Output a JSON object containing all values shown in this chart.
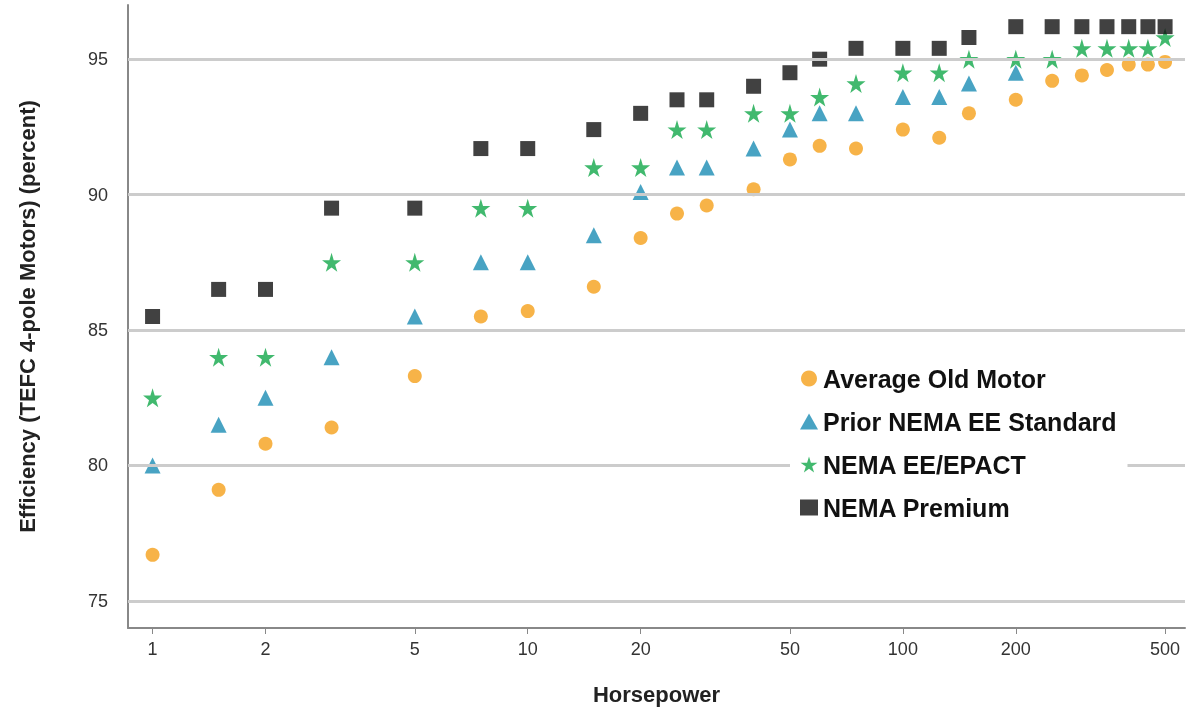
{
  "chart_data": {
    "type": "scatter",
    "xlabel": "Horsepower",
    "ylabel": "Efficiency (TEFC 4-pole Motors) (percent)",
    "log": "x",
    "xlim": [
      0.86,
      565
    ],
    "xticks": [
      1,
      2,
      5,
      10,
      20,
      50,
      100,
      200,
      500
    ],
    "ylim": [
      74,
      97
    ],
    "yticks": [
      75,
      80,
      85,
      90,
      95
    ],
    "grid": "y",
    "legend": "right",
    "series": [
      {
        "name": "Average Old Motor",
        "color": "#f5a01a",
        "marker": "circle",
        "x": [
          1,
          1.5,
          2,
          3,
          5,
          7.5,
          10,
          15,
          20,
          25,
          30,
          40,
          50,
          60,
          75,
          100,
          125,
          150,
          200,
          250,
          300,
          350,
          400,
          450,
          500
        ],
        "values": [
          76.7,
          79.1,
          80.8,
          81.4,
          83.3,
          85.5,
          85.7,
          86.6,
          88.4,
          89.3,
          89.6,
          90.2,
          91.3,
          91.8,
          91.7,
          92.4,
          92.1,
          93.0,
          93.5,
          94.2,
          94.4,
          94.6,
          94.8,
          94.8,
          94.9
        ]
      },
      {
        "name": "Prior NEMA EE Standard",
        "color": "#1a8cb4",
        "marker": "triangle",
        "x": [
          1,
          1.5,
          2,
          3,
          5,
          7.5,
          10,
          15,
          20,
          25,
          30,
          40,
          50,
          60,
          75,
          100,
          125,
          150,
          200
        ],
        "values": [
          80.0,
          81.5,
          82.5,
          84.0,
          85.5,
          87.5,
          87.5,
          88.5,
          90.1,
          91.0,
          91.0,
          91.7,
          92.4,
          93.0,
          93.0,
          93.6,
          93.6,
          94.1,
          94.5
        ]
      },
      {
        "name": "NEMA EE/EPACT",
        "color": "#11a84a",
        "marker": "star",
        "x": [
          1,
          1.5,
          2,
          3,
          5,
          7.5,
          10,
          15,
          20,
          25,
          30,
          40,
          50,
          60,
          75,
          100,
          125,
          150,
          200,
          250,
          300,
          350,
          400,
          450,
          500
        ],
        "values": [
          82.5,
          84.0,
          84.0,
          87.5,
          87.5,
          89.5,
          89.5,
          91.0,
          91.0,
          92.4,
          92.4,
          93.0,
          93.0,
          93.6,
          94.1,
          94.5,
          94.5,
          95.0,
          95.0,
          95.0,
          95.4,
          95.4,
          95.4,
          95.4,
          95.8
        ]
      },
      {
        "name": "NEMA Premium",
        "color": "#111111",
        "marker": "square",
        "x": [
          1,
          1.5,
          2,
          3,
          5,
          7.5,
          10,
          15,
          20,
          25,
          30,
          40,
          50,
          60,
          75,
          100,
          125,
          150,
          200,
          250,
          300,
          350,
          400,
          450,
          500
        ],
        "values": [
          85.5,
          86.5,
          86.5,
          89.5,
          89.5,
          91.7,
          91.7,
          92.4,
          93.0,
          93.5,
          93.5,
          94.0,
          94.5,
          95.0,
          95.4,
          95.4,
          95.4,
          95.8,
          96.2,
          96.2,
          96.2,
          96.2,
          96.2,
          96.2,
          96.2
        ]
      }
    ]
  }
}
